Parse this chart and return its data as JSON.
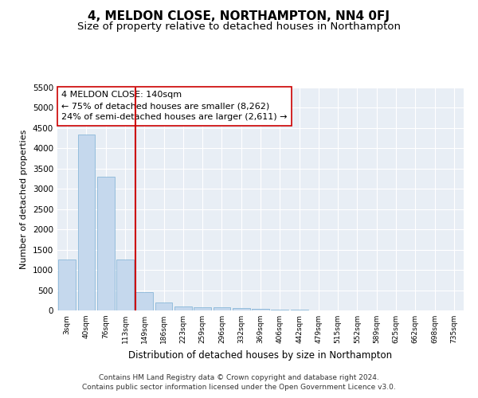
{
  "title": "4, MELDON CLOSE, NORTHAMPTON, NN4 0FJ",
  "subtitle": "Size of property relative to detached houses in Northampton",
  "xlabel": "Distribution of detached houses by size in Northampton",
  "ylabel": "Number of detached properties",
  "footnote1": "Contains HM Land Registry data © Crown copyright and database right 2024.",
  "footnote2": "Contains public sector information licensed under the Open Government Licence v3.0.",
  "annotation_title": "4 MELDON CLOSE: 140sqm",
  "annotation_line1": "← 75% of detached houses are smaller (8,262)",
  "annotation_line2": "24% of semi-detached houses are larger (2,611) →",
  "categories": [
    "3sqm",
    "40sqm",
    "76sqm",
    "113sqm",
    "149sqm",
    "186sqm",
    "223sqm",
    "259sqm",
    "296sqm",
    "332sqm",
    "369sqm",
    "406sqm",
    "442sqm",
    "479sqm",
    "515sqm",
    "552sqm",
    "589sqm",
    "625sqm",
    "662sqm",
    "698sqm",
    "735sqm"
  ],
  "values": [
    1250,
    4350,
    3300,
    1250,
    450,
    200,
    100,
    75,
    75,
    50,
    30,
    20,
    10,
    5,
    3,
    2,
    1,
    1,
    1,
    1,
    0
  ],
  "bar_color": "#c5d8ed",
  "bar_edge_color": "#7bafd4",
  "vline_color": "#cc0000",
  "ylim": [
    0,
    5500
  ],
  "yticks": [
    0,
    500,
    1000,
    1500,
    2000,
    2500,
    3000,
    3500,
    4000,
    4500,
    5000,
    5500
  ],
  "fig_background_color": "#ffffff",
  "plot_background_color": "#e8eef5",
  "grid_color": "#ffffff",
  "title_fontsize": 11,
  "subtitle_fontsize": 9.5,
  "annotation_box_color": "#ffffff",
  "annotation_box_edge": "#cc0000",
  "annotation_fontsize": 8,
  "footnote_fontsize": 6.5
}
